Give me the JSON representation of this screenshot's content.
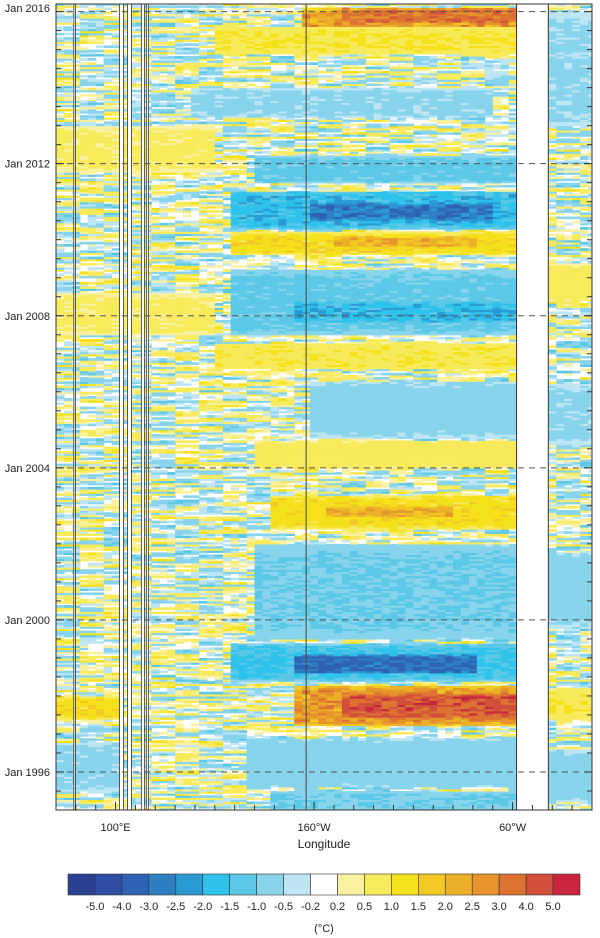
{
  "chart_data": {
    "type": "heatmap",
    "title": "",
    "xlabel": "Longitude",
    "ylabel": "",
    "y_tick_labels": [
      "Jan 2016",
      "Jan 2012",
      "Jan 2008",
      "Jan 2004",
      "Jan 2000",
      "Jan 1996"
    ],
    "y_tick_years": [
      2016,
      2012,
      2008,
      2004,
      2000,
      1996
    ],
    "ylim": [
      1995,
      2016.2
    ],
    "x_tick_labels": [
      "100°E",
      "160°W",
      "60°W"
    ],
    "x_tick_lon_east": [
      100,
      200,
      300
    ],
    "xlim_lon_east": [
      70,
      340
    ],
    "grid": "dashed horizontal lines at year ticks",
    "colorbar": {
      "unit_label": "(°C)",
      "tick_labels": [
        "-5.0",
        "-4.0",
        "-3.0",
        "-2.5",
        "-2.0",
        "-1.5",
        "-1.0",
        "-0.5",
        "-0.2",
        "0.2",
        "0.5",
        "1.0",
        "1.5",
        "2.0",
        "2.5",
        "3.0",
        "4.0",
        "5.0"
      ],
      "colors": [
        "#2b3f93",
        "#2e4ea3",
        "#3062b3",
        "#2e7fc1",
        "#2a9ad3",
        "#2fc3ec",
        "#5ac8e6",
        "#87d4ec",
        "#bde5f4",
        "#ffffff",
        "#f9f1a0",
        "#f7ea5b",
        "#f4e11c",
        "#f2c924",
        "#ebb027",
        "#e5932a",
        "#dd7332",
        "#d24f3c",
        "#c8263f"
      ]
    },
    "land_gaps_lon_east": [
      [
        302,
        318
      ]
    ],
    "bands": [
      {
        "t0": 2015.3,
        "t1": 2016.1,
        "lon0": 195,
        "lon1": 300,
        "value": 2.5
      },
      {
        "t0": 2015.7,
        "t1": 2016.1,
        "lon0": 215,
        "lon1": 300,
        "value": 3.5
      },
      {
        "t0": 2014.9,
        "t1": 2015.6,
        "lon0": 150,
        "lon1": 300,
        "value": 1.0
      },
      {
        "t0": 2013.2,
        "t1": 2014.0,
        "lon0": 140,
        "lon1": 290,
        "value": -0.6
      },
      {
        "t0": 2011.5,
        "t1": 2012.2,
        "lon0": 170,
        "lon1": 300,
        "value": -1.2
      },
      {
        "t0": 2010.3,
        "t1": 2011.3,
        "lon0": 160,
        "lon1": 300,
        "value": -1.8
      },
      {
        "t0": 2010.5,
        "t1": 2011.0,
        "lon0": 200,
        "lon1": 290,
        "value": -2.8
      },
      {
        "t0": 2009.6,
        "t1": 2010.2,
        "lon0": 160,
        "lon1": 300,
        "value": 1.3
      },
      {
        "t0": 2009.8,
        "t1": 2010.1,
        "lon0": 210,
        "lon1": 280,
        "value": 2.2
      },
      {
        "t0": 2007.5,
        "t1": 2009.2,
        "lon0": 160,
        "lon1": 300,
        "value": -1.2
      },
      {
        "t0": 2007.8,
        "t1": 2008.4,
        "lon0": 190,
        "lon1": 300,
        "value": -1.8
      },
      {
        "t0": 2006.6,
        "t1": 2007.3,
        "lon0": 150,
        "lon1": 300,
        "value": 0.9
      },
      {
        "t0": 2004.8,
        "t1": 2006.3,
        "lon0": 200,
        "lon1": 300,
        "value": -0.7
      },
      {
        "t0": 2004.0,
        "t1": 2004.7,
        "lon0": 170,
        "lon1": 300,
        "value": 0.8
      },
      {
        "t0": 2002.4,
        "t1": 2003.3,
        "lon0": 180,
        "lon1": 300,
        "value": 1.3
      },
      {
        "t0": 2002.7,
        "t1": 2003.0,
        "lon0": 205,
        "lon1": 270,
        "value": 2.3
      },
      {
        "t0": 1999.5,
        "t1": 2002.0,
        "lon0": 170,
        "lon1": 300,
        "value": -1.0
      },
      {
        "t0": 1998.4,
        "t1": 1999.4,
        "lon0": 160,
        "lon1": 300,
        "value": -1.6
      },
      {
        "t0": 1998.6,
        "t1": 1999.1,
        "lon0": 190,
        "lon1": 280,
        "value": -3.2
      },
      {
        "t0": 1997.2,
        "t1": 1998.3,
        "lon0": 190,
        "lon1": 300,
        "value": 2.6
      },
      {
        "t0": 1997.4,
        "t1": 1998.1,
        "lon0": 215,
        "lon1": 300,
        "value": 4.2
      },
      {
        "t0": 1995.6,
        "t1": 1996.9,
        "lon0": 165,
        "lon1": 300,
        "value": -0.8
      },
      {
        "t0": 1995.0,
        "t1": 1995.5,
        "lon0": 180,
        "lon1": 300,
        "value": -1.0
      },
      {
        "t0": 2013.0,
        "t1": 2016.0,
        "lon0": 318,
        "lon1": 340,
        "value": -0.6
      },
      {
        "t0": 2008.4,
        "t1": 2009.4,
        "lon0": 318,
        "lon1": 340,
        "value": 0.7
      },
      {
        "t0": 2004.6,
        "t1": 2006.2,
        "lon0": 318,
        "lon1": 340,
        "value": -0.6
      },
      {
        "t0": 1999.8,
        "t1": 2001.8,
        "lon0": 318,
        "lon1": 340,
        "value": -0.7
      },
      {
        "t0": 1997.4,
        "t1": 1998.2,
        "lon0": 318,
        "lon1": 340,
        "value": 0.9
      },
      {
        "t0": 1995.2,
        "t1": 1996.6,
        "lon0": 318,
        "lon1": 340,
        "value": -0.7
      },
      {
        "t0": 2011.8,
        "t1": 2013.0,
        "lon0": 70,
        "lon1": 150,
        "value": 0.6
      },
      {
        "t0": 2007.5,
        "t1": 2008.6,
        "lon0": 70,
        "lon1": 150,
        "value": 0.6
      },
      {
        "t0": 1997.4,
        "t1": 1998.0,
        "lon0": 70,
        "lon1": 100,
        "value": 1.3
      },
      {
        "t0": 1995.5,
        "t1": 1996.8,
        "lon0": 70,
        "lon1": 100,
        "value": -0.6
      }
    ]
  }
}
